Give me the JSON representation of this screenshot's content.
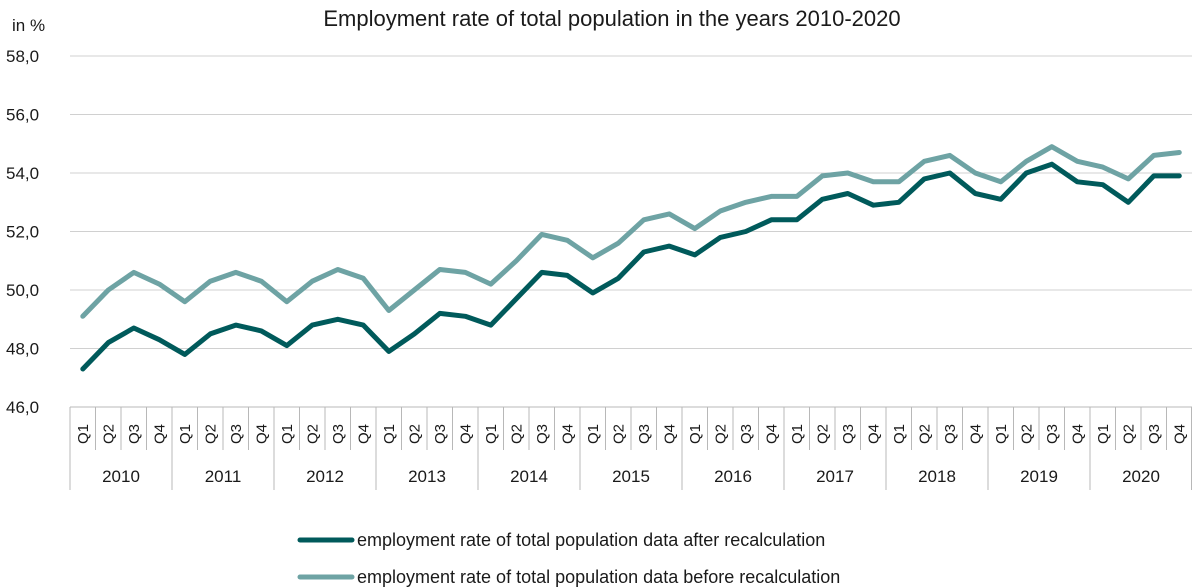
{
  "chart_data": {
    "type": "line",
    "title": "Employment rate of total population in the years 2010-2020",
    "ylabel": "in %",
    "ylim": [
      46,
      58
    ],
    "yticks": [
      "46,0",
      "48,0",
      "50,0",
      "52,0",
      "54,0",
      "56,0",
      "58,0"
    ],
    "ytick_values": [
      46,
      48,
      50,
      52,
      54,
      56,
      58
    ],
    "grid": true,
    "legend_position": "bottom",
    "quarters": [
      "Q1",
      "Q2",
      "Q3",
      "Q4"
    ],
    "years": [
      "2010",
      "2011",
      "2012",
      "2013",
      "2014",
      "2015",
      "2016",
      "2017",
      "2018",
      "2019",
      "2020"
    ],
    "series": [
      {
        "name": "employment rate of total population data after recalculation",
        "color": "#005a5b",
        "values": [
          47.3,
          48.2,
          48.7,
          48.3,
          47.8,
          48.5,
          48.8,
          48.6,
          48.1,
          48.8,
          49.0,
          48.8,
          47.9,
          48.5,
          49.2,
          49.1,
          48.8,
          49.7,
          50.6,
          50.5,
          49.9,
          50.4,
          51.3,
          51.5,
          51.2,
          51.8,
          52.0,
          52.4,
          52.4,
          53.1,
          53.3,
          52.9,
          53.0,
          53.8,
          54.0,
          53.3,
          53.1,
          54.0,
          54.3,
          53.7,
          53.6,
          53.0,
          53.9,
          53.9
        ]
      },
      {
        "name": "employment rate of total population data before recalculation",
        "color": "#6ea3a4",
        "values": [
          49.1,
          50.0,
          50.6,
          50.2,
          49.6,
          50.3,
          50.6,
          50.3,
          49.6,
          50.3,
          50.7,
          50.4,
          49.3,
          50.0,
          50.7,
          50.6,
          50.2,
          51.0,
          51.9,
          51.7,
          51.1,
          51.6,
          52.4,
          52.6,
          52.1,
          52.7,
          53.0,
          53.2,
          53.2,
          53.9,
          54.0,
          53.7,
          53.7,
          54.4,
          54.6,
          54.0,
          53.7,
          54.4,
          54.9,
          54.4,
          54.2,
          53.8,
          54.6,
          54.7
        ]
      }
    ]
  }
}
